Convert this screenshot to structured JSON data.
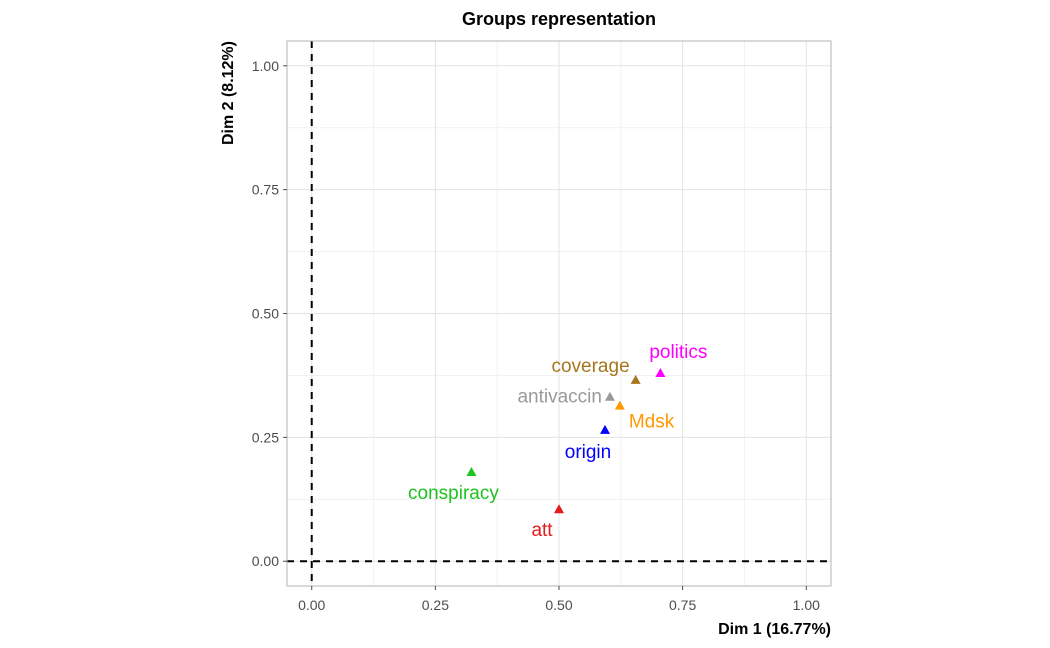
{
  "chart_data": {
    "type": "scatter",
    "title": "Groups representation",
    "xlabel": "Dim 1 (16.77%)",
    "ylabel": "Dim 2 (8.12%)",
    "xlim": [
      -0.05,
      1.05
    ],
    "ylim": [
      -0.05,
      1.05
    ],
    "xticks": [
      {
        "value": 0,
        "label": "0.00"
      },
      {
        "value": 0.25,
        "label": "0.25"
      },
      {
        "value": 0.5,
        "label": "0.50"
      },
      {
        "value": 0.75,
        "label": "0.75"
      },
      {
        "value": 1,
        "label": "1.00"
      }
    ],
    "yticks": [
      {
        "value": 0,
        "label": "0.00"
      },
      {
        "value": 0.25,
        "label": "0.25"
      },
      {
        "value": 0.5,
        "label": "0.50"
      },
      {
        "value": 0.75,
        "label": "0.75"
      },
      {
        "value": 1,
        "label": "1.00"
      }
    ],
    "grid": true,
    "reference_lines": {
      "x": 0,
      "y": 0,
      "style": "dashed"
    },
    "marker": "triangle",
    "points": [
      {
        "label": "politics",
        "x": 0.705,
        "y": 0.38,
        "color": "#ff00ff",
        "label_pos": "top"
      },
      {
        "label": "coverage",
        "x": 0.655,
        "y": 0.366,
        "color": "#a6761d",
        "label_pos": "left-top"
      },
      {
        "label": "antivaccin",
        "x": 0.603,
        "y": 0.332,
        "color": "#999999",
        "label_pos": "left"
      },
      {
        "label": "Mdsk",
        "x": 0.623,
        "y": 0.314,
        "color": "#ff9900",
        "label_pos": "right-bottom"
      },
      {
        "label": "origin",
        "x": 0.593,
        "y": 0.265,
        "color": "#0000ff",
        "label_pos": "bottom"
      },
      {
        "label": "conspiracy",
        "x": 0.323,
        "y": 0.18,
        "color": "#1fc31f",
        "label_pos": "left-bottom"
      },
      {
        "label": "att",
        "x": 0.5,
        "y": 0.105,
        "color": "#e41a1c",
        "label_pos": "left-bottom"
      }
    ]
  }
}
